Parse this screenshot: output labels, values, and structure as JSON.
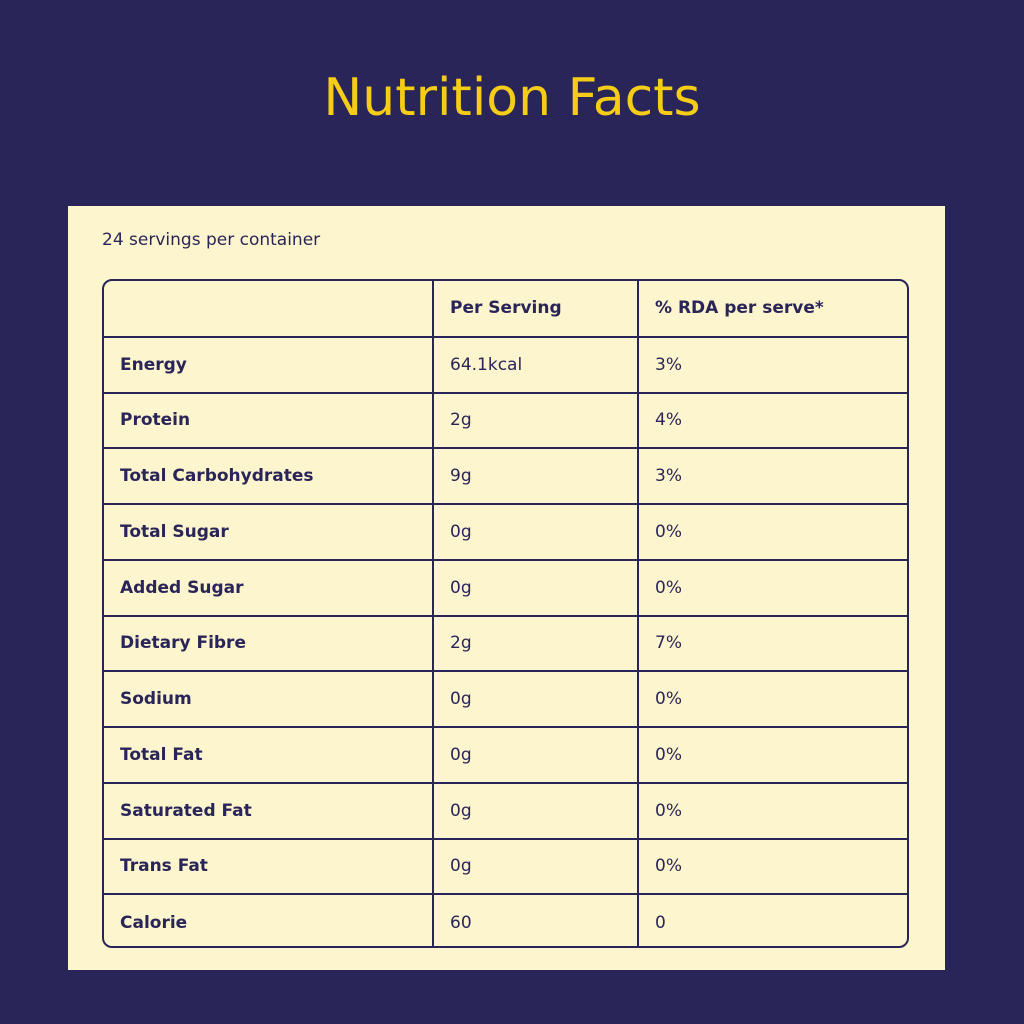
{
  "title": "Nutrition Facts",
  "servings_text": "24 servings per container",
  "table": {
    "headers": [
      "",
      "Per Serving",
      "% RDA per serve*"
    ],
    "rows": [
      {
        "nutrient": "Energy",
        "per_serving": "64.1kcal",
        "rda": "3%"
      },
      {
        "nutrient": "Protein",
        "per_serving": "2g",
        "rda": "4%"
      },
      {
        "nutrient": "Total Carbohydrates",
        "per_serving": "9g",
        "rda": "3%"
      },
      {
        "nutrient": "Total Sugar",
        "per_serving": "0g",
        "rda": "0%"
      },
      {
        "nutrient": "Added Sugar",
        "per_serving": "0g",
        "rda": "0%"
      },
      {
        "nutrient": "Dietary Fibre",
        "per_serving": "2g",
        "rda": "7%"
      },
      {
        "nutrient": "Sodium",
        "per_serving": "0g",
        "rda": "0%"
      },
      {
        "nutrient": "Total Fat",
        "per_serving": "0g",
        "rda": "0%"
      },
      {
        "nutrient": "Saturated Fat",
        "per_serving": "0g",
        "rda": "0%"
      },
      {
        "nutrient": "Trans Fat",
        "per_serving": "0g",
        "rda": "0%"
      },
      {
        "nutrient": "Calorie",
        "per_serving": "60",
        "rda": "0"
      }
    ]
  },
  "colors": {
    "background": "#2a2559",
    "title": "#f5cc16",
    "card": "#fdf5ce",
    "text": "#2a2559"
  }
}
